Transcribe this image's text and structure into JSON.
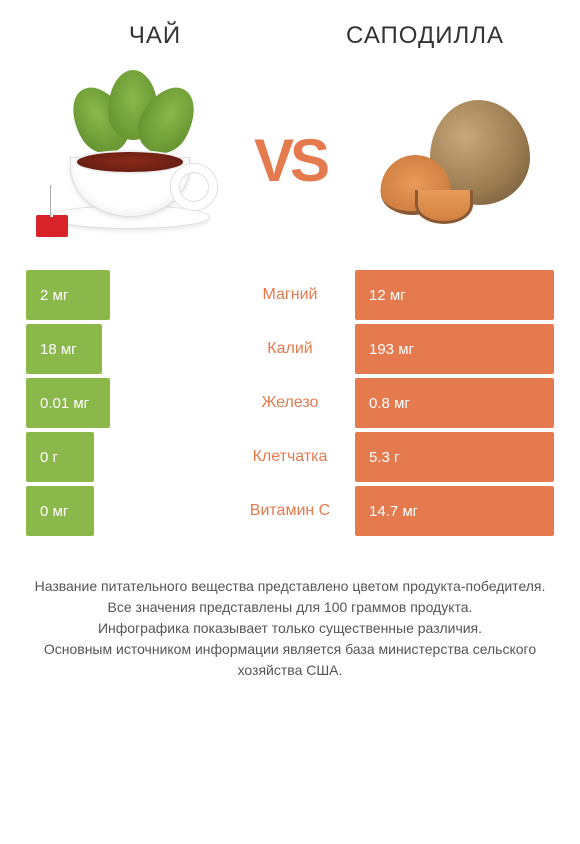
{
  "colors": {
    "left": "#8bb84a",
    "right": "#e67a4f",
    "text": "#555555",
    "white": "#ffffff"
  },
  "left_title": "ЧАЙ",
  "right_title": "САПОДИЛЛА",
  "vs_label": "VS",
  "rows": [
    {
      "label": "Магний",
      "left": "2 мг",
      "right": "12 мг",
      "left_w": 42,
      "right_w": 100,
      "winner": "right"
    },
    {
      "label": "Калий",
      "left": "18 мг",
      "right": "193 мг",
      "left_w": 38,
      "right_w": 100,
      "winner": "right"
    },
    {
      "label": "Железо",
      "left": "0.01 мг",
      "right": "0.8 мг",
      "left_w": 42,
      "right_w": 100,
      "winner": "right"
    },
    {
      "label": "Клетчатка",
      "left": "0 г",
      "right": "5.3 г",
      "left_w": 34,
      "right_w": 100,
      "winner": "right"
    },
    {
      "label": "Витамин С",
      "left": "0 мг",
      "right": "14.7 мг",
      "left_w": 34,
      "right_w": 100,
      "winner": "right"
    }
  ],
  "footer_lines": [
    "Название питательного вещества представлено цветом продукта-победителя.",
    "Все значения представлены для 100 граммов продукта.",
    "Инфографика показывает только существенные различия.",
    "Основным источником информации является база министерства сельского хозяйства США."
  ]
}
